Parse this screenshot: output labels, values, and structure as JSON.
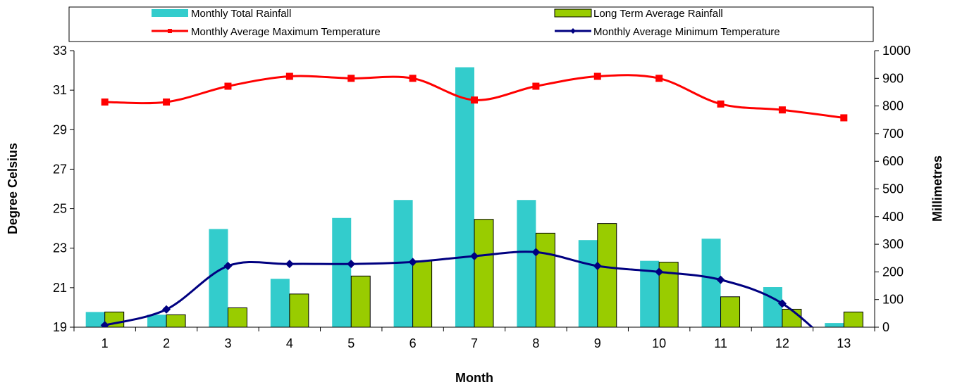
{
  "chart_data": {
    "type": "bar",
    "categories": [
      "1",
      "2",
      "3",
      "4",
      "5",
      "6",
      "7",
      "8",
      "9",
      "10",
      "11",
      "12",
      "13"
    ],
    "xlabel": "Month",
    "ylabel_left": "Degree Celsius",
    "ylabel_right": "Millimetres",
    "ylim_left": [
      19,
      33
    ],
    "yticks_left": [
      19,
      21,
      23,
      25,
      27,
      29,
      31,
      33
    ],
    "ylim_right": [
      0,
      1000
    ],
    "yticks_right": [
      0,
      100,
      200,
      300,
      400,
      500,
      600,
      700,
      800,
      900,
      1000
    ],
    "grid": false,
    "legend_position": "top",
    "bar_series": [
      {
        "name": "Monthly Total Rainfall",
        "axis": "right",
        "color": "#33CCCC",
        "values": [
          55,
          45,
          355,
          175,
          395,
          460,
          940,
          460,
          315,
          240,
          320,
          145,
          15
        ]
      },
      {
        "name": "Long Term Average Rainfall",
        "axis": "right",
        "color": "#99CC00",
        "values": [
          55,
          45,
          70,
          120,
          185,
          240,
          390,
          340,
          375,
          235,
          110,
          65,
          55
        ]
      }
    ],
    "line_series": [
      {
        "name": "Monthly Average Maximum Temperature",
        "axis": "left",
        "color": "#FF0000",
        "marker": "square",
        "values": [
          30.4,
          30.4,
          31.2,
          31.7,
          31.6,
          31.6,
          30.5,
          31.2,
          31.7,
          31.6,
          30.3,
          30.0,
          29.6
        ]
      },
      {
        "name": "Monthly Average Minimum Temperature",
        "axis": "left",
        "color": "#000080",
        "marker": "diamond",
        "values": [
          19.1,
          19.9,
          22.1,
          22.2,
          22.2,
          22.3,
          22.6,
          22.8,
          22.1,
          21.8,
          21.4,
          20.2,
          17.5
        ]
      }
    ]
  }
}
